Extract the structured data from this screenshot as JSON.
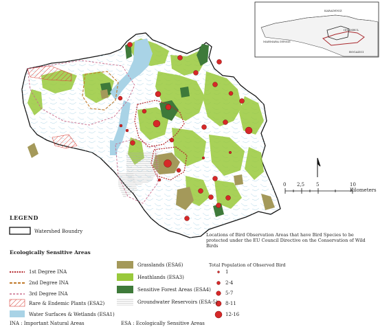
{
  "inset": {
    "labels": [
      "KARADENIZ",
      "MARMARA DENIZI",
      "ISTANBUL",
      "BOGAZICI"
    ]
  },
  "scale": {
    "ticks": [
      "0",
      "2,5",
      "5",
      "10 Kilometers"
    ]
  },
  "legend": {
    "title": "LEGEND",
    "watershed": "Watershed Boundry",
    "section": "Ecologically Sensitive Areas",
    "items_left": [
      {
        "label": "1st Degree INA",
        "color": "#b3262b"
      },
      {
        "label": "2nd Degree INA",
        "color": "#c07a2a"
      },
      {
        "label": "3rd Degree INA",
        "color": "#c86a8a"
      },
      {
        "label": "Rare & Endemic Plants (ESA2)",
        "color": "#d9473f"
      },
      {
        "label": "Water Surfaces & Wetlands (ESA1)",
        "color": "#a9d3e6"
      }
    ],
    "items_right": [
      {
        "label": "Grasslands (ESA6)",
        "color": "#a4995a"
      },
      {
        "label": "Heathlands (ESA3)",
        "color": "#99c93c"
      },
      {
        "label": "Sensitive Forest Areas (ESA4)",
        "color": "#3e7a3a"
      },
      {
        "label": "Groundwater Reservoirs (ESA-5)",
        "color": "#c9c9c9"
      }
    ],
    "abbrev_ina": "INA  : Important Natural Areas",
    "abbrev_esa": "ESA  : Ecologically Sensitive Areas"
  },
  "bird_note": "Locations of Bird Observation Areas that have Bird Species to be protected under the EU Council Directive on the Conservation of Wild Birds",
  "bird_legend": {
    "title": "Total Population of Observed Bird",
    "classes": [
      "1",
      "2-4",
      "5-7",
      "8-11",
      "12-16"
    ],
    "color": "#d62828"
  },
  "colors": {
    "water": "#a9d3e6",
    "heath": "#99c93c",
    "forest": "#3e7a3a",
    "grass": "#a4995a",
    "bird": "#d62828"
  }
}
